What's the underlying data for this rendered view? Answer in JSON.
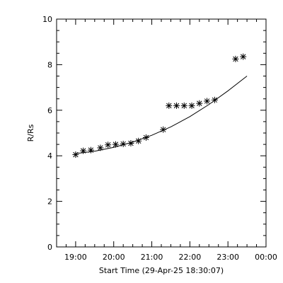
{
  "chart_data": {
    "type": "scatter",
    "xlabel": "Start Time (29-Apr-25 18:30:07)",
    "ylabel": "R/Rs",
    "xlim": [
      18.5,
      24.0
    ],
    "ylim": [
      0,
      10
    ],
    "x_ticks": [
      {
        "value": 19,
        "label": "19:00"
      },
      {
        "value": 20,
        "label": "20:00"
      },
      {
        "value": 21,
        "label": "21:00"
      },
      {
        "value": 22,
        "label": "22:00"
      },
      {
        "value": 23,
        "label": "23:00"
      },
      {
        "value": 24,
        "label": "00:00"
      }
    ],
    "y_ticks": [
      0,
      2,
      4,
      6,
      8,
      10
    ],
    "grid": false,
    "series": [
      {
        "marker": "asterisk",
        "points": [
          {
            "x": 19.0,
            "y": 4.05
          },
          {
            "x": 19.2,
            "y": 4.22
          },
          {
            "x": 19.4,
            "y": 4.25
          },
          {
            "x": 19.65,
            "y": 4.35
          },
          {
            "x": 19.85,
            "y": 4.48
          },
          {
            "x": 20.05,
            "y": 4.5
          },
          {
            "x": 20.25,
            "y": 4.52
          },
          {
            "x": 20.45,
            "y": 4.55
          },
          {
            "x": 20.65,
            "y": 4.65
          },
          {
            "x": 20.85,
            "y": 4.8
          },
          {
            "x": 21.3,
            "y": 5.15
          },
          {
            "x": 21.45,
            "y": 6.2
          },
          {
            "x": 21.65,
            "y": 6.2
          },
          {
            "x": 21.85,
            "y": 6.2
          },
          {
            "x": 22.05,
            "y": 6.2
          },
          {
            "x": 22.25,
            "y": 6.3
          },
          {
            "x": 22.45,
            "y": 6.4
          },
          {
            "x": 22.65,
            "y": 6.45
          },
          {
            "x": 23.2,
            "y": 8.25
          },
          {
            "x": 23.4,
            "y": 8.35
          }
        ]
      }
    ],
    "fit_curve": {
      "type": "quadratic",
      "points": [
        {
          "x": 19.0,
          "y": 4.1
        },
        {
          "x": 19.5,
          "y": 4.2
        },
        {
          "x": 20.0,
          "y": 4.37
        },
        {
          "x": 20.5,
          "y": 4.6
        },
        {
          "x": 21.0,
          "y": 4.9
        },
        {
          "x": 21.5,
          "y": 5.27
        },
        {
          "x": 22.0,
          "y": 5.72
        },
        {
          "x": 22.5,
          "y": 6.25
        },
        {
          "x": 23.0,
          "y": 6.85
        },
        {
          "x": 23.5,
          "y": 7.5
        }
      ]
    }
  }
}
